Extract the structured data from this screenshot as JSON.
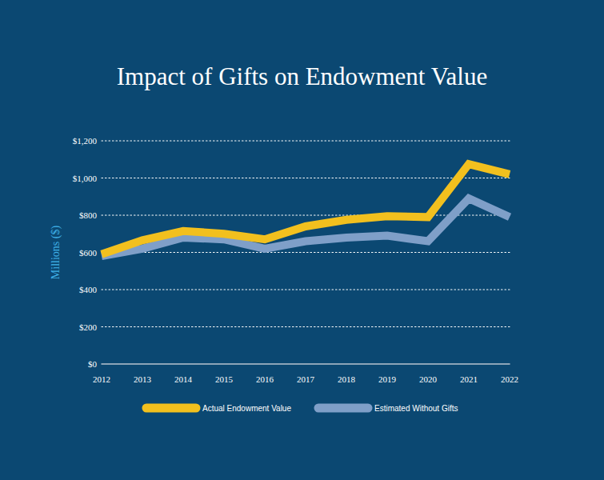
{
  "chart_data": {
    "type": "line",
    "title": "Impact of Gifts on Endowment Value",
    "y_label": "Millions ($)",
    "categories": [
      "2012",
      "2013",
      "2014",
      "2015",
      "2016",
      "2017",
      "2018",
      "2019",
      "2020",
      "2021",
      "2022"
    ],
    "series": [
      {
        "name": "Actual Endowment Value",
        "color": "#f2c01e",
        "values": [
          590,
          665,
          715,
          700,
          670,
          740,
          775,
          795,
          790,
          1075,
          1020
        ]
      },
      {
        "name": "Estimated Without Gifts",
        "color": "#7f9fc8",
        "values": [
          580,
          620,
          680,
          670,
          620,
          660,
          680,
          690,
          660,
          890,
          790
        ]
      }
    ],
    "ylim": [
      0,
      1200
    ],
    "yticks": [
      {
        "value": 0,
        "label": "$0"
      },
      {
        "value": 200,
        "label": "$200"
      },
      {
        "value": 400,
        "label": "$400"
      },
      {
        "value": 600,
        "label": "$600"
      },
      {
        "value": 800,
        "label": "$800"
      },
      {
        "value": 1000,
        "label": "$1,000"
      },
      {
        "value": 1200,
        "label": "$1,200"
      }
    ],
    "grid": true,
    "legend": "bottom"
  }
}
